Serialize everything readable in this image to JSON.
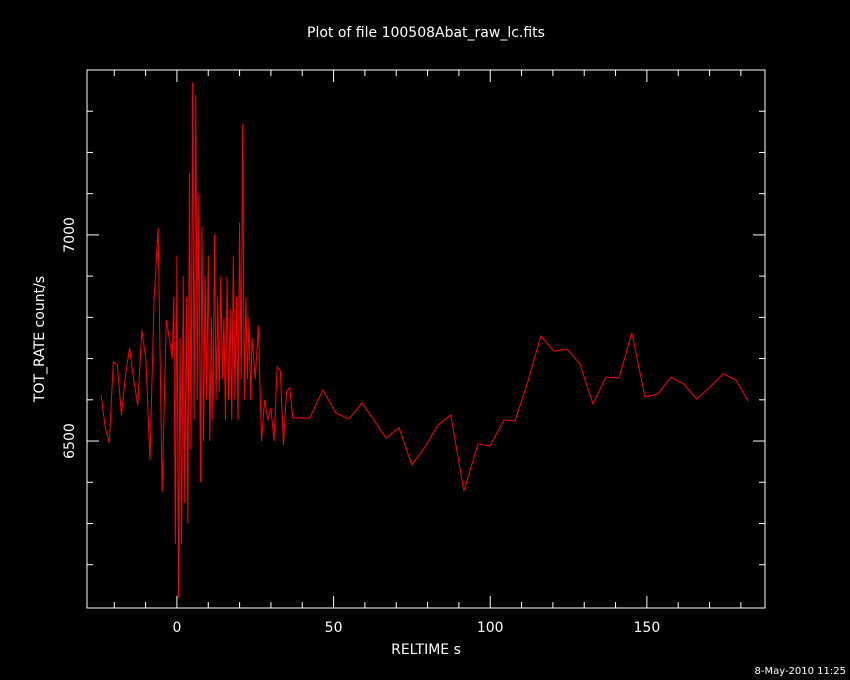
{
  "chart_data": {
    "type": "line",
    "title": "Plot of file 100508Abat_raw_lc.fits",
    "x_label": "RELTIME  s",
    "y_label": "TOT_RATE  count/s",
    "timestamp": "8-May-2010 11:25",
    "color": "#ff0000",
    "xlim": [
      -28.7,
      187.7
    ],
    "ylim": [
      6095,
      7400
    ],
    "xticks": [
      0,
      50,
      100,
      150
    ],
    "yticks": [
      6500,
      7000
    ],
    "xminorticks": [
      -20,
      -10,
      10,
      20,
      30,
      40,
      60,
      70,
      80,
      90,
      110,
      120,
      130,
      140,
      160,
      170,
      180
    ],
    "yminorticks": [
      6200,
      6300,
      6400,
      6600,
      6700,
      6800,
      6900,
      7100,
      7200,
      7300
    ],
    "x": [
      -24.2,
      -22.9,
      -21.6,
      -20.3,
      -19,
      -17.7,
      -16.4,
      -15.1,
      -13.8,
      -12.5,
      -11.2,
      -9.9,
      -8.6,
      -7.3,
      -6,
      -4.7,
      -3.4,
      -2.1,
      -1.5,
      -1,
      -0.5,
      0,
      0.5,
      1,
      1.5,
      2,
      2.5,
      3,
      3.5,
      4,
      4.5,
      5,
      5.5,
      6,
      6.5,
      7,
      7.5,
      8,
      8.5,
      9,
      9.5,
      10,
      10.5,
      11,
      11.5,
      12,
      12.5,
      13,
      13.5,
      14,
      14.5,
      15,
      15.5,
      16,
      16.5,
      17,
      17.5,
      18,
      18.5,
      19,
      19.5,
      20,
      20.5,
      21,
      21.5,
      22,
      22.5,
      23,
      23.5,
      24,
      25,
      26,
      27,
      28,
      29,
      30,
      31,
      32,
      33,
      34,
      35,
      36,
      37,
      38.3,
      42.4,
      46.6,
      50.7,
      54.9,
      59.0,
      62.9,
      66.7,
      70.9,
      75.0,
      79.1,
      83.3,
      87.4,
      91.6,
      96.1,
      99.9,
      104.4,
      107.9,
      111.7,
      116.2,
      120.3,
      124.5,
      128.6,
      132.8,
      136.9,
      141.1,
      145.2,
      149.4,
      153.5,
      157.7,
      161.8,
      165.9,
      170.1,
      174.3,
      178.4,
      182.3
    ],
    "values": [
      6612,
      6534,
      6495,
      6692,
      6684,
      6563,
      6660,
      6726,
      6648,
      6587,
      6769,
      6697,
      6454,
      6842,
      7017,
      6376,
      6794,
      6733,
      6700,
      6850,
      6250,
      6950,
      6120,
      6750,
      6250,
      6900,
      6350,
      6850,
      6300,
      7150,
      6480,
      7370,
      6550,
      7340,
      6600,
      7100,
      6400,
      7020,
      6500,
      6900,
      6600,
      6950,
      6500,
      6800,
      6550,
      7000,
      6600,
      6850,
      6620,
      6900,
      6650,
      6800,
      6550,
      6900,
      6600,
      6820,
      6550,
      6950,
      6600,
      6850,
      6550,
      7030,
      6650,
      7270,
      6600,
      6850,
      6650,
      6800,
      6600,
      6750,
      6650,
      6780,
      6500,
      6600,
      6550,
      6580,
      6500,
      6680,
      6670,
      6490,
      6620,
      6630,
      6556,
      6556,
      6556,
      6624,
      6568,
      6553,
      6592,
      6551,
      6507,
      6532,
      6442,
      6485,
      6539,
      6563,
      6379,
      6493,
      6488,
      6551,
      6549,
      6636,
      6755,
      6718,
      6723,
      6687,
      6590,
      6655,
      6653,
      6762,
      6607,
      6614,
      6655,
      6638,
      6602,
      6631,
      6663,
      6648,
      6597
    ]
  }
}
